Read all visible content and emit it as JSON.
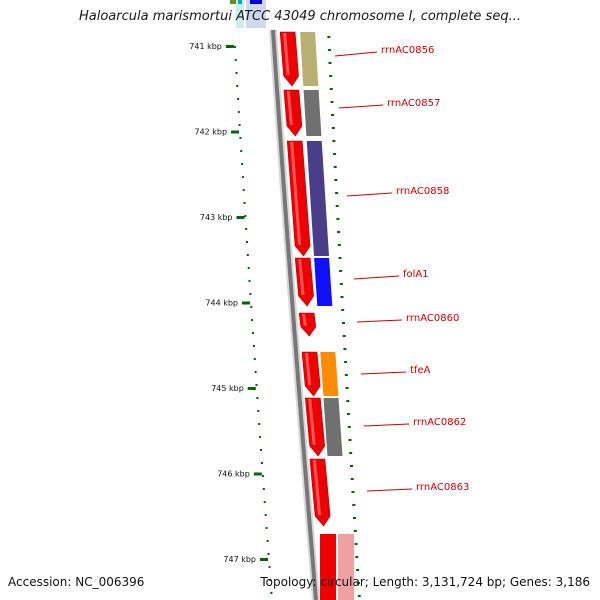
{
  "title": "Haloarcula marismortui ATCC 43049 chromosome I, complete seq...",
  "accession": "Accession: NC_006396",
  "summary": "Topology: circular; Length: 3,131,724 bp; Genes: 3,186",
  "colors": {
    "ruler": "#006600",
    "backbone": "#777777",
    "cds": "#ee0000",
    "gene_label": "#cc0000",
    "text": "#111111"
  },
  "ruler_labels": [
    "741 kbp",
    "742 kbp",
    "743 kbp",
    "744 kbp",
    "745 kbp",
    "746 kbp",
    "747 kbp"
  ],
  "genes": [
    {
      "label": "rrnAC0856",
      "cog_color": "#b8b070"
    },
    {
      "label": "rrnAC0857",
      "cog_color": "#707070"
    },
    {
      "label": "rrnAC0858",
      "cog_color": "#4a3d8a"
    },
    {
      "label": "folA1",
      "cog_color": "#1010ff"
    },
    {
      "label": "rrnAC0860",
      "cog_color": ""
    },
    {
      "label": "tfeA",
      "cog_color": "#ff8c00"
    },
    {
      "label": "rrnAC0862",
      "cog_color": "#707070"
    },
    {
      "label": "rrnAC0863",
      "cog_color": ""
    }
  ]
}
